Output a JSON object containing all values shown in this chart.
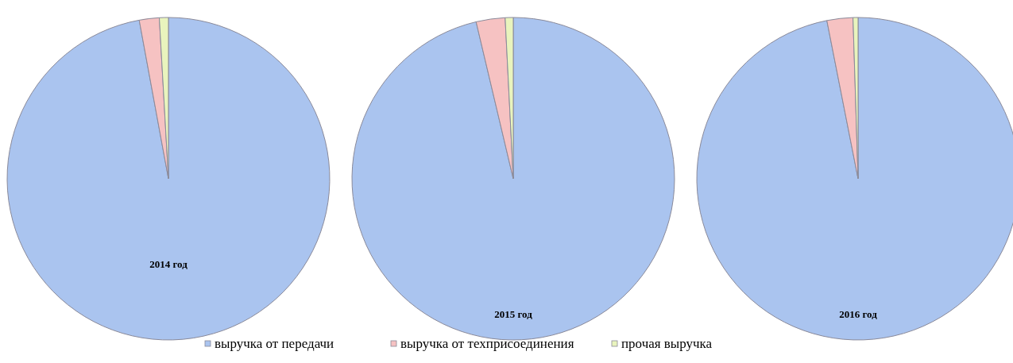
{
  "chart_data": [
    {
      "type": "pie",
      "title": "2014 год",
      "categories": [
        "выручка от передачи",
        "выручка от техприсоединения",
        "прочая выручка"
      ],
      "values": [
        97.1,
        2.0,
        0.9
      ],
      "colors": [
        "#aac4ef",
        "#f6c2c2",
        "#e9f4bd"
      ],
      "legend": "bottom"
    },
    {
      "type": "pie",
      "title": "2015 год",
      "categories": [
        null,
        null,
        null
      ],
      "values": [
        96.3,
        2.9,
        0.8
      ],
      "colors": [
        "#aac4ef",
        "#f6c2c2",
        "#e9f4bd"
      ]
    },
    {
      "type": "pie",
      "title": "2016 год",
      "categories": [
        null,
        null,
        null
      ],
      "values": [
        96.9,
        2.6,
        0.5
      ],
      "colors": [
        "#aac4ef",
        "#f6c2c2",
        "#e9f4bd"
      ]
    }
  ]
}
